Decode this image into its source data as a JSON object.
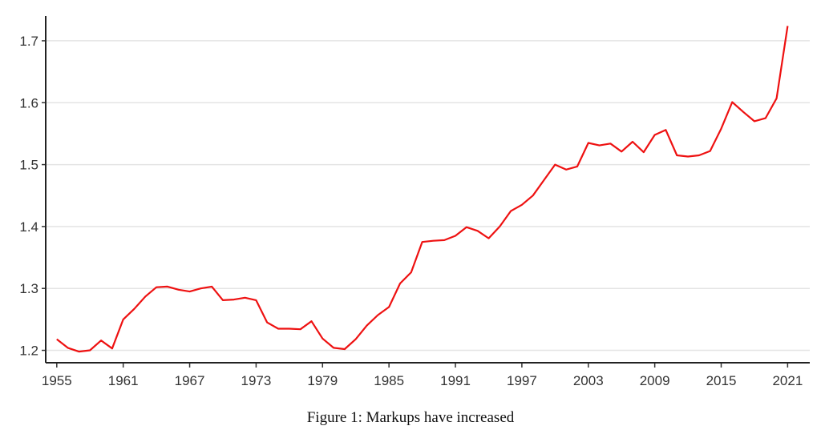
{
  "caption": "Figure 1: Markups have increased",
  "chart_data": {
    "type": "line",
    "title": "",
    "xlabel": "",
    "ylabel": "",
    "xlim": [
      1954,
      2023
    ],
    "ylim": [
      1.18,
      1.74
    ],
    "grid": "horizontal",
    "line_color": "#ee1111",
    "x_ticks": [
      1955,
      1961,
      1967,
      1973,
      1979,
      1985,
      1991,
      1997,
      2003,
      2009,
      2015,
      2021
    ],
    "y_ticks": [
      1.2,
      1.3,
      1.4,
      1.5,
      1.6,
      1.7
    ],
    "y_tick_labels": [
      "1.2",
      "1.3",
      "1.4",
      "1.5",
      "1.6",
      "1.7"
    ],
    "series": [
      {
        "x": [
          1955,
          1956,
          1957,
          1958,
          1959,
          1960,
          1961,
          1962,
          1963,
          1964,
          1965,
          1966,
          1967,
          1968,
          1969,
          1970,
          1971,
          1972,
          1973,
          1974,
          1975,
          1976,
          1977,
          1978,
          1979,
          1980,
          1981,
          1982,
          1983,
          1984,
          1985,
          1986,
          1987,
          1988,
          1989,
          1990,
          1991,
          1992,
          1993,
          1994,
          1995,
          1996,
          1997,
          1998,
          1999,
          2000,
          2001,
          2002,
          2003,
          2004,
          2005,
          2006,
          2007,
          2008,
          2009,
          2010,
          2011,
          2012,
          2013,
          2014,
          2015,
          2016,
          2017,
          2018,
          2019,
          2020,
          2021
        ],
        "values": [
          1.218,
          1.204,
          1.198,
          1.2,
          1.216,
          1.203,
          1.25,
          1.267,
          1.287,
          1.302,
          1.303,
          1.298,
          1.295,
          1.3,
          1.303,
          1.281,
          1.282,
          1.285,
          1.281,
          1.245,
          1.235,
          1.235,
          1.234,
          1.247,
          1.219,
          1.204,
          1.202,
          1.218,
          1.24,
          1.257,
          1.27,
          1.308,
          1.326,
          1.375,
          1.377,
          1.378,
          1.385,
          1.399,
          1.393,
          1.381,
          1.4,
          1.425,
          1.435,
          1.45,
          1.475,
          1.5,
          1.492,
          1.497,
          1.535,
          1.531,
          1.534,
          1.521,
          1.537,
          1.52,
          1.548,
          1.556,
          1.515,
          1.513,
          1.515,
          1.522,
          1.558,
          1.601,
          1.585,
          1.57,
          1.575,
          1.607,
          1.724
        ]
      }
    ]
  }
}
